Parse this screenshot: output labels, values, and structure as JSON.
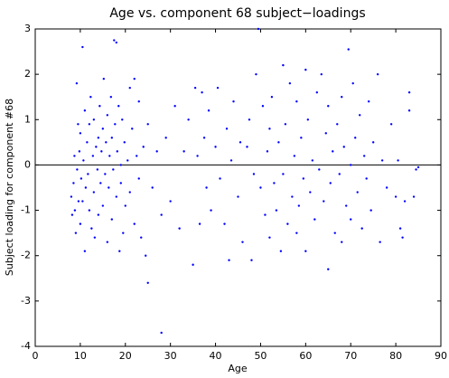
{
  "chart_data": {
    "type": "scatter",
    "title": "Age vs. component 68 subject−loadings",
    "x_label": "Age",
    "y_label": "Subject loading for component #68",
    "color": "#0000ff",
    "reference_line": 0,
    "xlim": [
      0,
      90
    ],
    "xticks": [
      0,
      10,
      20,
      30,
      40,
      50,
      60,
      70,
      80,
      90
    ],
    "ylim": [
      -4,
      3
    ],
    "yticks": [
      -4,
      -3,
      -2,
      -1,
      0,
      1,
      2,
      3
    ],
    "x": [
      8,
      8.2,
      8.5,
      8.7,
      8.8,
      9,
      9.2,
      9.3,
      9.5,
      9.6,
      9.8,
      10,
      10,
      10.2,
      10.5,
      10.5,
      10.7,
      11,
      11,
      11.2,
      11.5,
      11.7,
      12,
      12,
      12.3,
      12.5,
      12.8,
      13,
      13,
      13.2,
      13.5,
      13.8,
      14,
      14,
      14.3,
      14.5,
      14.7,
      15,
      15,
      15.2,
      15.5,
      15.7,
      16,
      16,
      16.3,
      16.5,
      16.8,
      17,
      17,
      17.3,
      17.5,
      17.7,
      18,
      18,
      18.2,
      18.5,
      18.7,
      19,
      19,
      19.3,
      19.5,
      19.8,
      20,
      20.5,
      21,
      21,
      21.5,
      22,
      22,
      22.5,
      23,
      23,
      23.5,
      24,
      24.5,
      25,
      25,
      26,
      27,
      28,
      28,
      29,
      30,
      31,
      32,
      33,
      34,
      35,
      35.5,
      36,
      36.5,
      37,
      37.5,
      38,
      38.5,
      39,
      40,
      40.5,
      41,
      42,
      42.5,
      43,
      43.5,
      44,
      45,
      45.5,
      46,
      47,
      47.5,
      48,
      48.5,
      49,
      49.5,
      50,
      50.5,
      51,
      51.5,
      52,
      52,
      52.5,
      53,
      53.5,
      54,
      54.5,
      55,
      55,
      55.5,
      56,
      56.5,
      57,
      57.5,
      58,
      58,
      58.5,
      59,
      59.5,
      60,
      60,
      60.5,
      61,
      61.5,
      62,
      62.5,
      63,
      63.5,
      64,
      64.5,
      65,
      65,
      65.5,
      66,
      66.5,
      67,
      67.5,
      68,
      68,
      68.5,
      69,
      69.5,
      70,
      70,
      70.5,
      71,
      71.5,
      72,
      72.5,
      73,
      73.5,
      74,
      74.5,
      75,
      76,
      76.5,
      77,
      78,
      79,
      80,
      80.5,
      81,
      81.5,
      82,
      83,
      83,
      84,
      84.5,
      85
    ],
    "values": [
      -0.7,
      -1.1,
      -0.4,
      0.2,
      -1.0,
      -1.5,
      1.8,
      -0.1,
      0.9,
      -0.8,
      0.3,
      -1.3,
      0.7,
      -0.3,
      2.6,
      -0.8,
      0.1,
      1.2,
      -1.9,
      -0.5,
      0.5,
      -0.2,
      -1.0,
      0.9,
      1.5,
      -1.4,
      0.2,
      -0.6,
      1.0,
      -1.6,
      0.4,
      -0.1,
      0.6,
      -1.1,
      1.3,
      -0.4,
      0.3,
      -0.9,
      0.8,
      1.9,
      -0.2,
      0.5,
      -1.7,
      1.1,
      -0.5,
      0.2,
      1.5,
      -1.2,
      0.6,
      -0.1,
      2.75,
      0.9,
      2.7,
      -0.7,
      0.3,
      1.3,
      -1.9,
      0.0,
      -0.4,
      1.0,
      -1.5,
      0.5,
      -0.9,
      0.1,
      1.7,
      -0.6,
      0.8,
      1.9,
      -1.3,
      0.2,
      -0.3,
      1.4,
      -1.6,
      0.4,
      -2.0,
      -2.6,
      0.9,
      -0.5,
      0.3,
      -3.7,
      -1.1,
      0.6,
      -0.8,
      1.3,
      -1.4,
      0.3,
      1.0,
      -2.2,
      1.7,
      0.2,
      -1.3,
      1.6,
      0.6,
      -0.5,
      1.2,
      -1.0,
      0.4,
      1.7,
      -0.3,
      -1.3,
      0.8,
      -2.1,
      0.1,
      1.4,
      -0.7,
      0.5,
      -1.7,
      0.4,
      1.0,
      -2.1,
      -0.2,
      2.0,
      3.0,
      -0.5,
      1.3,
      -1.1,
      0.3,
      0.8,
      -1.6,
      1.5,
      -0.4,
      -1.0,
      0.5,
      -1.9,
      2.2,
      -0.2,
      0.9,
      -1.3,
      1.8,
      -0.7,
      0.2,
      1.4,
      -1.5,
      -0.9,
      0.6,
      -0.3,
      2.1,
      -1.9,
      1.0,
      -0.6,
      0.1,
      -1.2,
      1.6,
      -0.1,
      2.0,
      -0.8,
      0.7,
      -2.3,
      1.3,
      -0.4,
      0.3,
      -1.5,
      0.9,
      -0.2,
      1.5,
      -1.7,
      0.4,
      -0.9,
      2.55,
      0.0,
      -1.2,
      1.8,
      0.6,
      -0.6,
      1.1,
      -1.4,
      0.2,
      -0.3,
      1.4,
      -1.0,
      0.5,
      2.0,
      -1.7,
      0.1,
      -0.5,
      0.9,
      -0.7,
      0.1,
      -1.4,
      -1.6,
      -0.8,
      1.6,
      1.2,
      -0.7,
      -0.1,
      -0.05
    ]
  }
}
